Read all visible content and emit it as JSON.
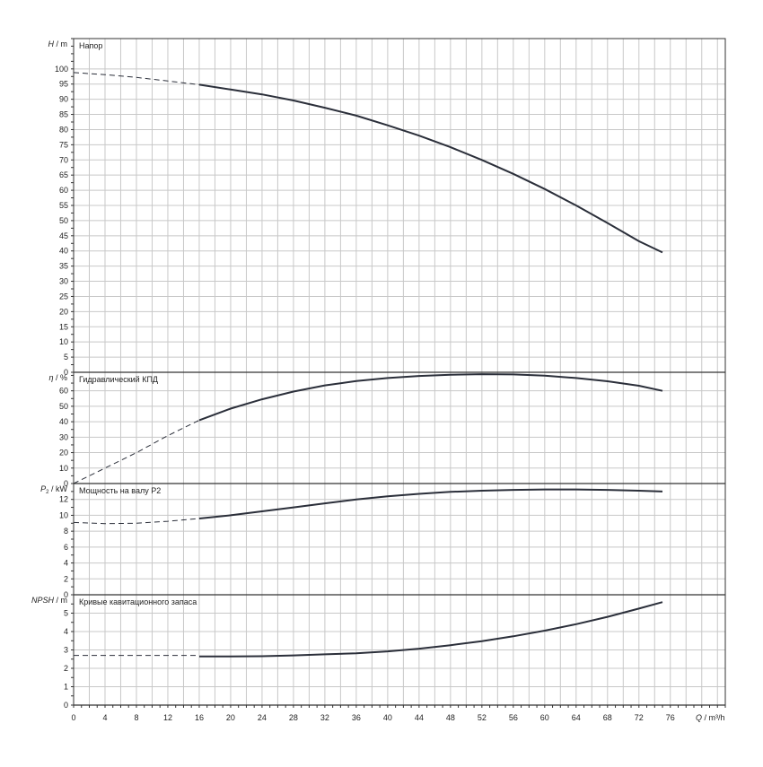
{
  "chart_data": [
    {
      "type": "line",
      "title": "Напор",
      "ylabel_var": "H",
      "ylabel_unit": "/ m",
      "ylim": [
        0,
        110
      ],
      "yticks": [
        0,
        5,
        10,
        15,
        20,
        25,
        30,
        35,
        40,
        45,
        50,
        55,
        60,
        65,
        70,
        75,
        80,
        85,
        90,
        95,
        100
      ],
      "grid": true,
      "series": [
        {
          "style": "dashed",
          "x": [
            0,
            4,
            8,
            12,
            16
          ],
          "y": [
            98.8,
            98.1,
            97.2,
            96.0,
            94.8
          ]
        },
        {
          "style": "solid",
          "x": [
            16,
            20,
            24,
            28,
            32,
            36,
            40,
            44,
            48,
            52,
            56,
            60,
            64,
            68,
            72,
            75
          ],
          "y": [
            94.8,
            93.2,
            91.6,
            89.6,
            87.2,
            84.6,
            81.4,
            78.0,
            74.2,
            70.0,
            65.4,
            60.4,
            55.0,
            49.2,
            43.2,
            39.5
          ]
        }
      ]
    },
    {
      "type": "line",
      "title": "Гидравлический КПД",
      "ylabel_var": "η",
      "ylabel_unit": "/ %",
      "ylim": [
        0,
        72
      ],
      "yticks": [
        0,
        10,
        20,
        30,
        40,
        50,
        60
      ],
      "grid": true,
      "series": [
        {
          "style": "dashed",
          "x": [
            0,
            4,
            8,
            12,
            16
          ],
          "y": [
            0,
            10,
            20,
            31,
            41
          ]
        },
        {
          "style": "solid",
          "x": [
            16,
            20,
            24,
            28,
            32,
            36,
            40,
            44,
            48,
            52,
            56,
            60,
            64,
            68,
            72,
            75
          ],
          "y": [
            41,
            48.5,
            54.5,
            59.5,
            63.5,
            66.3,
            68.3,
            69.6,
            70.4,
            70.8,
            70.6,
            69.8,
            68.3,
            66.2,
            63.3,
            60.0
          ]
        }
      ]
    },
    {
      "type": "line",
      "title": "Мощность на валу P2",
      "ylabel_var": "P",
      "ylabel_sub": "2",
      "ylabel_unit": "/ kW",
      "ylim": [
        0,
        14
      ],
      "yticks": [
        0,
        2,
        4,
        6,
        8,
        10,
        12
      ],
      "grid": true,
      "series": [
        {
          "style": "dashed",
          "x": [
            0,
            4,
            8,
            12,
            16
          ],
          "y": [
            9.1,
            8.95,
            9.0,
            9.25,
            9.6
          ]
        },
        {
          "style": "solid",
          "x": [
            16,
            20,
            24,
            28,
            32,
            36,
            40,
            44,
            48,
            52,
            56,
            60,
            64,
            68,
            72,
            75
          ],
          "y": [
            9.6,
            10.0,
            10.5,
            11.0,
            11.5,
            12.0,
            12.4,
            12.7,
            12.95,
            13.1,
            13.2,
            13.25,
            13.25,
            13.2,
            13.1,
            13.0
          ]
        }
      ]
    },
    {
      "type": "line",
      "title": "Кривые кавитационного запаса",
      "ylabel_var": "NPSH",
      "ylabel_unit": "/ m",
      "ylim": [
        0,
        6
      ],
      "yticks": [
        0,
        1,
        2,
        3,
        4,
        5
      ],
      "grid": true,
      "series": [
        {
          "style": "dashed",
          "x": [
            0,
            16
          ],
          "y": [
            2.7,
            2.7
          ]
        },
        {
          "style": "solid",
          "x": [
            16,
            20,
            24,
            28,
            32,
            36,
            40,
            44,
            48,
            52,
            56,
            60,
            64,
            68,
            72,
            75
          ],
          "y": [
            2.65,
            2.65,
            2.66,
            2.7,
            2.76,
            2.82,
            2.92,
            3.07,
            3.26,
            3.48,
            3.74,
            4.05,
            4.4,
            4.8,
            5.25,
            5.6
          ]
        }
      ]
    }
  ],
  "x_axis": {
    "label_var": "Q",
    "label_unit": "/ m³/h",
    "xlim": [
      0,
      83
    ],
    "ticks": [
      0,
      4,
      8,
      12,
      16,
      20,
      24,
      28,
      32,
      36,
      40,
      44,
      48,
      52,
      56,
      60,
      64,
      68,
      72,
      76
    ]
  }
}
